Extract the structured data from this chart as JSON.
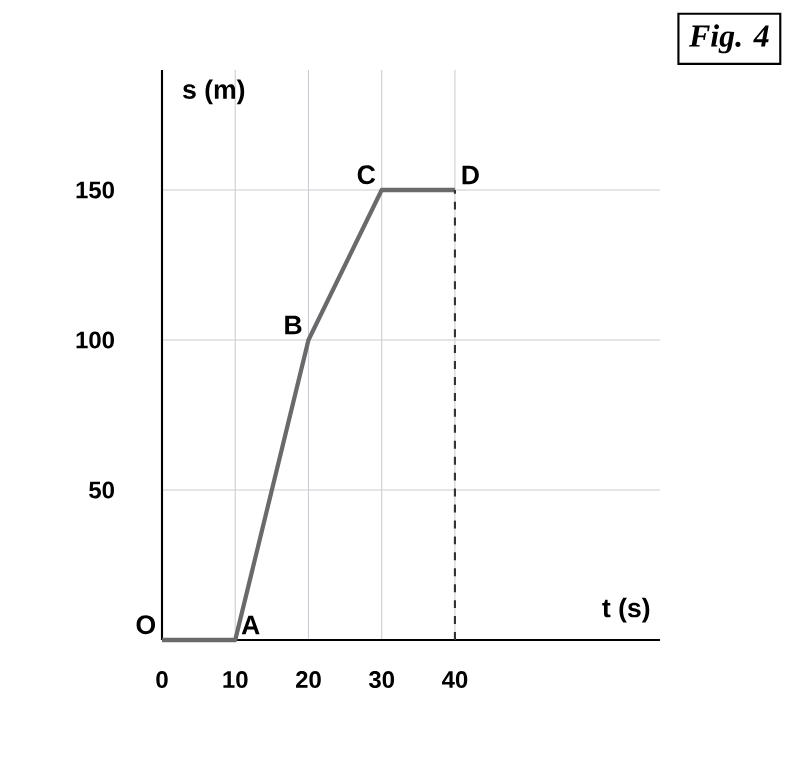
{
  "chart_data": {
    "type": "line",
    "title": "Fig. 4",
    "xlabel": "t (s)",
    "ylabel": "s (m)",
    "x": [
      0,
      10,
      20,
      30,
      40
    ],
    "series": [
      {
        "color": "#6a6a6a",
        "values": [
          0,
          0,
          100,
          150,
          150
        ]
      }
    ],
    "xlim": [
      0,
      68
    ],
    "ylim": [
      0,
      190
    ],
    "xticks": [
      0,
      10,
      20,
      30,
      40
    ],
    "yticks": [
      50,
      100,
      150
    ],
    "grid": true,
    "marker": "none",
    "line_style": "solid",
    "ref_lines": [
      {
        "axis": "x",
        "value": 40,
        "line_style": "dashed",
        "color": "#333333"
      }
    ],
    "annotations": [
      {
        "text": "O",
        "x": 0,
        "y": 0
      },
      {
        "text": "A",
        "x": 10,
        "y": 0
      },
      {
        "text": "B",
        "x": 20,
        "y": 100
      },
      {
        "text": "C",
        "x": 30,
        "y": 150
      },
      {
        "text": "D",
        "x": 40,
        "y": 150
      }
    ]
  }
}
